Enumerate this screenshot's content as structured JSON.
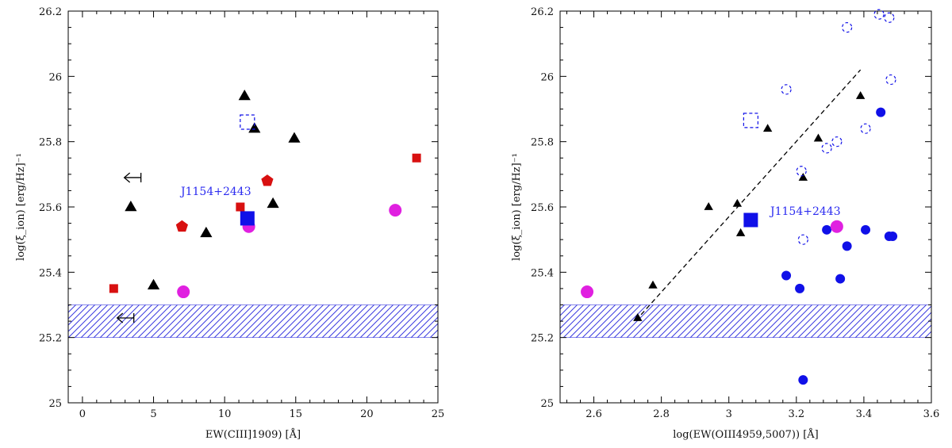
{
  "colors": {
    "blue": "#1010e8",
    "red": "#d81010",
    "magenta": "#e020e0",
    "black": "#000000",
    "hatch": "#3a3ae0",
    "label_blue": "#2c2cf0"
  },
  "chart_data": [
    {
      "type": "scatter",
      "panel": "left",
      "xlabel": "EW(CIII]1909) [Å]",
      "ylabel": "log(ξ_ion) [erg/Hz]⁻¹",
      "xlim": [
        -1,
        25
      ],
      "ylim": [
        25,
        26.2
      ],
      "xticks": [
        0,
        5,
        10,
        15,
        20,
        25
      ],
      "xtick_labels": [
        "0",
        "5",
        "10",
        "15",
        "20",
        "25"
      ],
      "yticks": [
        25,
        25.2,
        25.4,
        25.6,
        25.8,
        26,
        26.2
      ],
      "ytick_labels": [
        "25",
        "25.2",
        "25.4",
        "25.6",
        "25.8",
        "26",
        "26.2"
      ],
      "hatched_band": [
        25.2,
        25.3
      ],
      "annotations": [
        {
          "text": "J1154+2443",
          "x": 11.5,
          "y": 25.625
        }
      ],
      "series": [
        {
          "name": "black-triangles",
          "marker": "triangle",
          "color": "black",
          "points": [
            [
              11.4,
              25.94
            ],
            [
              12.1,
              25.84
            ],
            [
              14.9,
              25.81
            ],
            [
              3.4,
              25.6
            ],
            [
              13.4,
              25.61
            ],
            [
              8.7,
              25.52
            ],
            [
              5.0,
              25.36
            ]
          ]
        },
        {
          "name": "red-squares",
          "marker": "square",
          "color": "red",
          "points": [
            [
              23.5,
              25.75
            ],
            [
              11.1,
              25.6
            ],
            [
              2.2,
              25.35
            ]
          ]
        },
        {
          "name": "red-pentagons",
          "marker": "pentagon",
          "color": "red",
          "points": [
            [
              13.0,
              25.68
            ],
            [
              7.0,
              25.54
            ]
          ]
        },
        {
          "name": "magenta-circles",
          "marker": "circle",
          "color": "magenta",
          "points": [
            [
              22.0,
              25.59
            ],
            [
              11.7,
              25.54
            ],
            [
              7.1,
              25.34
            ]
          ]
        },
        {
          "name": "blue-dashed-square",
          "marker": "dashed-square",
          "color": "blue",
          "points": [
            [
              11.6,
              25.86
            ]
          ]
        },
        {
          "name": "J1154+2443",
          "marker": "big-square",
          "color": "blue",
          "points": [
            [
              11.6,
              25.565
            ]
          ]
        },
        {
          "name": "upper-limits",
          "marker": "left-arrow",
          "color": "black",
          "points": [
            [
              3.5,
              25.69
            ],
            [
              3.0,
              25.26
            ]
          ]
        }
      ]
    },
    {
      "type": "scatter",
      "panel": "right",
      "xlabel": "log(EW(OIII4959,5007)) [Å]",
      "ylabel": "log(ξ_ion) [erg/Hz]⁻¹",
      "xlim": [
        2.5,
        3.6
      ],
      "ylim": [
        25,
        26.2
      ],
      "xticks": [
        2.6,
        2.8,
        3,
        3.2,
        3.4,
        3.6
      ],
      "xtick_labels": [
        "2.6",
        "2.8",
        "3",
        "3.2",
        "3.4",
        "3.6"
      ],
      "yticks": [
        25,
        25.2,
        25.4,
        25.6,
        25.8,
        26,
        26.2
      ],
      "ytick_labels": [
        "25",
        "25.2",
        "25.4",
        "25.6",
        "25.8",
        "26",
        "26.2"
      ],
      "hatched_band": [
        25.2,
        25.3
      ],
      "trend_line": {
        "x": [
          2.74,
          3.39
        ],
        "y": [
          25.27,
          26.02
        ]
      },
      "annotations": [
        {
          "text": "J1154+2443",
          "x": 3.085,
          "y": 25.58
        }
      ],
      "series": [
        {
          "name": "small-black-triangles",
          "marker": "small-triangle",
          "color": "black",
          "points": [
            [
              2.73,
              25.26
            ],
            [
              2.775,
              25.36
            ],
            [
              2.94,
              25.6
            ],
            [
              3.025,
              25.61
            ],
            [
              3.035,
              25.52
            ],
            [
              3.115,
              25.84
            ],
            [
              3.22,
              25.69
            ],
            [
              3.265,
              25.81
            ],
            [
              3.39,
              25.94
            ]
          ]
        },
        {
          "name": "blue-filled-circles",
          "marker": "circle",
          "color": "blue",
          "points": [
            [
              3.45,
              25.89
            ],
            [
              3.29,
              25.53
            ],
            [
              3.405,
              25.53
            ],
            [
              3.475,
              25.51
            ],
            [
              3.485,
              25.51
            ],
            [
              3.35,
              25.48
            ],
            [
              3.17,
              25.39
            ],
            [
              3.21,
              25.35
            ],
            [
              3.33,
              25.38
            ],
            [
              3.22,
              25.07
            ]
          ]
        },
        {
          "name": "blue-dashed-circles",
          "marker": "dashed-circle",
          "color": "blue",
          "points": [
            [
              3.35,
              26.15
            ],
            [
              3.445,
              26.19
            ],
            [
              3.475,
              26.18
            ],
            [
              3.48,
              25.99
            ],
            [
              3.17,
              25.96
            ],
            [
              3.405,
              25.84
            ],
            [
              3.215,
              25.71
            ],
            [
              3.29,
              25.78
            ],
            [
              3.32,
              25.8
            ],
            [
              3.22,
              25.5
            ]
          ]
        },
        {
          "name": "blue-dashed-square",
          "marker": "dashed-square",
          "color": "blue",
          "points": [
            [
              3.065,
              25.865
            ]
          ]
        },
        {
          "name": "J1154+2443",
          "marker": "big-square",
          "color": "blue",
          "points": [
            [
              3.065,
              25.56
            ]
          ]
        },
        {
          "name": "magenta-circles",
          "marker": "circle",
          "color": "magenta",
          "points": [
            [
              2.58,
              25.34
            ],
            [
              3.32,
              25.54
            ]
          ]
        }
      ]
    }
  ]
}
